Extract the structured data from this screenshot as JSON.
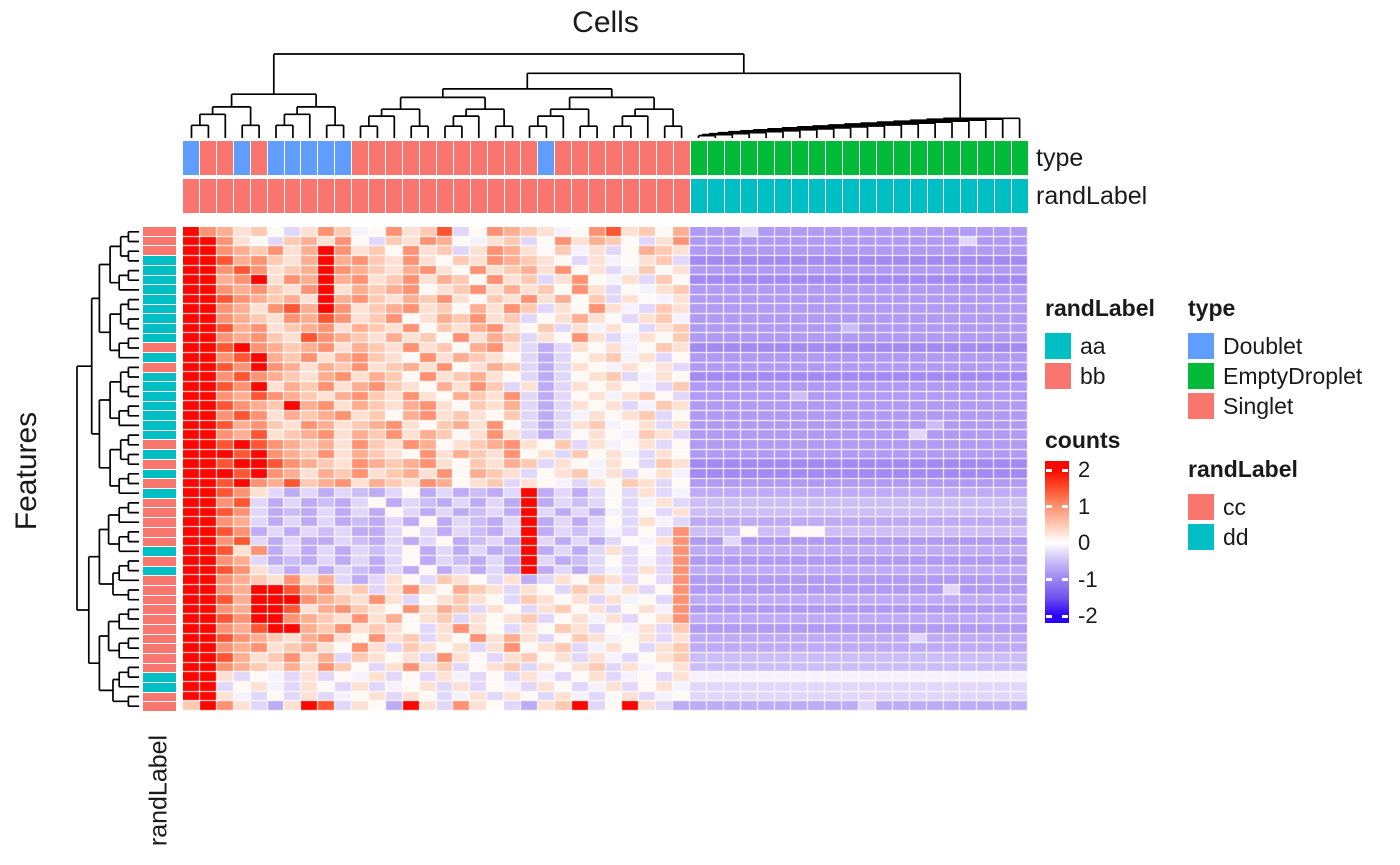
{
  "title": "Cells",
  "row_axis_title": "Features",
  "annotation_labels": {
    "type": "type",
    "randLabel_column": "randLabel",
    "randLabel_row": "randLabel"
  },
  "legends": {
    "randLabel_cells": {
      "title": "randLabel",
      "items": [
        {
          "label": "aa",
          "color": "#00BFC4"
        },
        {
          "label": "bb",
          "color": "#F8766D"
        }
      ]
    },
    "type": {
      "title": "type",
      "items": [
        {
          "label": "Doublet",
          "color": "#619CFF"
        },
        {
          "label": "EmptyDroplet",
          "color": "#00BA38"
        },
        {
          "label": "Singlet",
          "color": "#F8766D"
        }
      ]
    },
    "counts": {
      "title": "counts",
      "ticks": [
        "2",
        "1",
        "0",
        "-1",
        "-2"
      ]
    },
    "randLabel_features": {
      "title": "randLabel",
      "items": [
        {
          "label": "cc",
          "color": "#F8766D"
        },
        {
          "label": "dd",
          "color": "#00BFC4"
        }
      ]
    }
  },
  "chart_data": {
    "type": "heatmap",
    "n_rows": 50,
    "n_cols": 50,
    "colormap": {
      "name": "blue-white-red",
      "domain": [
        -2,
        2
      ],
      "stops": [
        [
          -2,
          "#2A00FF"
        ],
        [
          -1.5,
          "#6E52EE"
        ],
        [
          -1,
          "#9C85F1"
        ],
        [
          -0.5,
          "#CBBDF6"
        ],
        [
          0,
          "#FFFFFF"
        ],
        [
          0.5,
          "#FFC9B2"
        ],
        [
          1,
          "#FF9272"
        ],
        [
          1.5,
          "#FF4E2B"
        ],
        [
          2,
          "#FB0700"
        ]
      ]
    },
    "value_encoding": {
      "R": 2,
      "r": 1.45,
      "o": 1,
      "s": 0.75,
      "p": 0.5,
      "q": 0.28,
      "w": 0.06,
      "m": -0.1,
      "l": -0.3,
      "u": -0.5,
      "v": -0.65,
      "V": -0.8,
      "W": -0.95,
      "B": -1.3
    },
    "annotation_colors": {
      "D": "#619CFF",
      "S": "#F8766D",
      "E": "#00BA38",
      "a": "#00BFC4",
      "b": "#F8766D",
      "c": "#F8766D",
      "d": "#00BFC4"
    },
    "column_annotations": {
      "type": "DSSDSDDDDDSSSSSSSSSSSDSSSSSSSSEEEEEEEEEEEEEEEEEEEE",
      "randLabel": "bbbbbbbbbbbbbbbbbbbbbbbbbbbbbbaaaaaaaaaaaaaaaaaaaa"
    },
    "row_annotation": {
      "randLabel": "cccdddddddddcdcdddddddcdcdcdcccccdcdccccccccccddcc"
    },
    "rows": [
      "RosqpwlqopmwoqprlwospqmworqpwsVVVlVVVVVVVVVVVVVVVV",
      "RRoqwlpsqowlpqoswmqplwoqspwlqoVVVVVVVVVVVVVVVVlVVV",
      "RRospoqsRoqpwoqplqosqwpmqlwspqVVVVVVVVVVVVVVVVVVVV",
      "RRrsopqsRsopqoqwpqospqwlqmwqplWWWWWWWWWWWWWWWWWWWW",
      "RRoroqpsRospqsoqwoqpsqowqlmpwqVVVVVVVVVVVVVVVVVVVV",
      "RRsoRqosRsoqpoqspwoqplqowmqlpwWWWWWWWWWWWWWWWWWWWW",
      "RRosopqoRqspsowqpoqsqpwoqlwmqpVVVVVVVVVVVVVVVVVVVV",
      "RRrospsqRsopqspoqwpqoqswplqwmqVVVVVVVVVVVVVVVVVVVV",
      "RRosqorsRoqpsoqpwsqoplqwoqmlpqVVVVVVVVVVVVVVVVVVVV",
      "RRospqosroqpowqspoqplwqsqwlqpmVVVVVVVVVVVVVVVVVVVV",
      "RRrsoqpsoqspqowpqsoqwplqmqwlqpVVVVVVVVVuVVVVVVVVVV",
      "RRosopqrospqsqpwoqsplqwoqlmqwpVVVVVVVVVVVVVVVVVVVV",
      "RRrRospsoqspqoqpwsoqlvlqwqmwpqWWWWWWWWWWWWWWWWWWWW",
      "RRorRspoqsopqwoqspqwlvlwqpmqlwVVVVVVVVVVVVVVVVVVVV",
      "RRroRosqspoqpsqowqsplvlqwmqwqlVVVVVVVVVVVVVVVVVVVV",
      "RRorospqsoqspwoqpsqwlvlwqplmqwWWWWWWWWWWWWWWWWWWWW",
      "RRroRqspoqsopqwsqoplqvlqwqwmlpVVVVVVVVVVVVVVVVVVVV",
      "RRosrospqsopqoqwspqolvlwqmqpwlVVVVVVuVVVVVVVVVVVVV",
      "RRrospRsoqspqsoqwpqslvlqwqlmpqVVVVVVVVVVVVVVVVVVVV",
      "RRoroqspsoqpwsoqpqwplvlmqwqplwVVVVVVVVVVVVVVVVVVVV",
      "RRrsopqosqpsoqwpsqowlvlqpmwqlqVVVVVVVVVVVVVVuVVVVV",
      "RRosrqpsoqspoqspwqoqlvlwqwmpqlVVVVVVVVVVVVVlVVVVVV",
      "RRrRrospsqopqoswqpsoqwplqmwqlwVVVVVVVVVVVVVVVVVVVV",
      "RRRrRospoqspqwoqspqowqlpwqmlqwVVVVVVVVVVVVVVVVVVVV",
      "RRrRRrospqospsoqwpqsplqwmqwlpqWWWWWWWWWWWWWWWWWWWW",
      "RRRrRosqspoqpsqowspqlwqpmqlwqmWWWWWWWWWWWWWWWWWWWW",
      "RRrRosrpsoqspqoswqplqwmlqwpqlwVVVVVVVVVVVVVVVVVVVV",
      "RRroqlvlvluvlwvlvuvlRvlvlwlqlmvvvvvvvvvvvvvvvvvvvv",
      "RRorlvlvuvlwvluvlvlvRvlulwlmqluuuuuuuuuuuuuuuuuuuu",
      "RRrolvuvlvlvwlvlvulvRlvlvmlwlquuuuuuuuuuuuuuuuuuuu",
      "RRoslvlvlvuvlvwvluvlRvlvlwlqmlvvvvvvvvvvvvvvvvvvvv",
      "RRrovlvlulvvlwlvluvlRvlulmlwlouuuwuuwwuuuuuuuuuuuu",
      "RRorlvlvvluvlvlwvulvRlvlvlwmqoVVlVVVVVVVVVVVVVVVVV",
      "RRrqovlvlvlulwvlvlvuRvlvlqlwlovvvvvvvvvvvvvvvvvvvv",
      "RRoslvuvlvlvlwvluvlvRlvulwlmloVVVVVVVVVVVVVVVVVVVV",
      "RRroqlvlvluvlvwvlvlvRvlvlmlqlovvvvvvvvvvvvvvvvvvvv",
      "RRospqoqslvlqwlpqwlqvlqwpqlwloVVVVVVVVVVVVVVVVVVVV",
      "RRosRRrsoqplqoqwspqlqwlpqmqlwoVVVVVVVVVVVVVVVlVVVV",
      "RRrsRRRospqoqlwqpqwlpqwqlqmwlovvvvvvvvvvvvvvvvvvvv",
      "RRosRRrqsopqwoqsplqwlqpwqlwqmoVVVVVVVVVVVVVVVVVVVV",
      "RRroRRospqoqswqplqwqplwqmqlwqovvvvvvvvvvvvvvvvvvvv",
      "RRosrRRspoqpqwlqoqwlqwpqlwmqlpVVVVVVVVVVVVVVVVVVVV",
      "RRrospqsoqwoqplqwoqsqlwpqmwqlqvvvvvvvvvvvvvlvvvvvv",
      "RRosoqpsqwoqlpqwqlqowqplmqwlqpvvvvvvvvvvvvvvvvvvvv",
      "RRrsqpoqslpqwqloqwlqpwqlqmlwqpuuuuuuuuuuuuuuuuuuuu",
      "RRospqsqopwlqoqplwqplqwqplqmwquuuuuuuuuuuuuuuuuuuu",
      "RRqlwmlqlwmqlwlqmlwlqmlwqlmwlqmmmmmmmmmmmmmmmmmmmm",
      "RRlwqmlqwlqlmwqlqlwmlqwlmqlwqmllllllllllllllllllll",
      "RRqmlwlqlmwqlqwlmqlqwlqmlwqlmwllllllllllllllllllll",
      "pRoqlvqRrlqwvRqloqwlvqpRlwRqlvvvvvvvvvvvlvvvvvvvvv"
    ]
  }
}
